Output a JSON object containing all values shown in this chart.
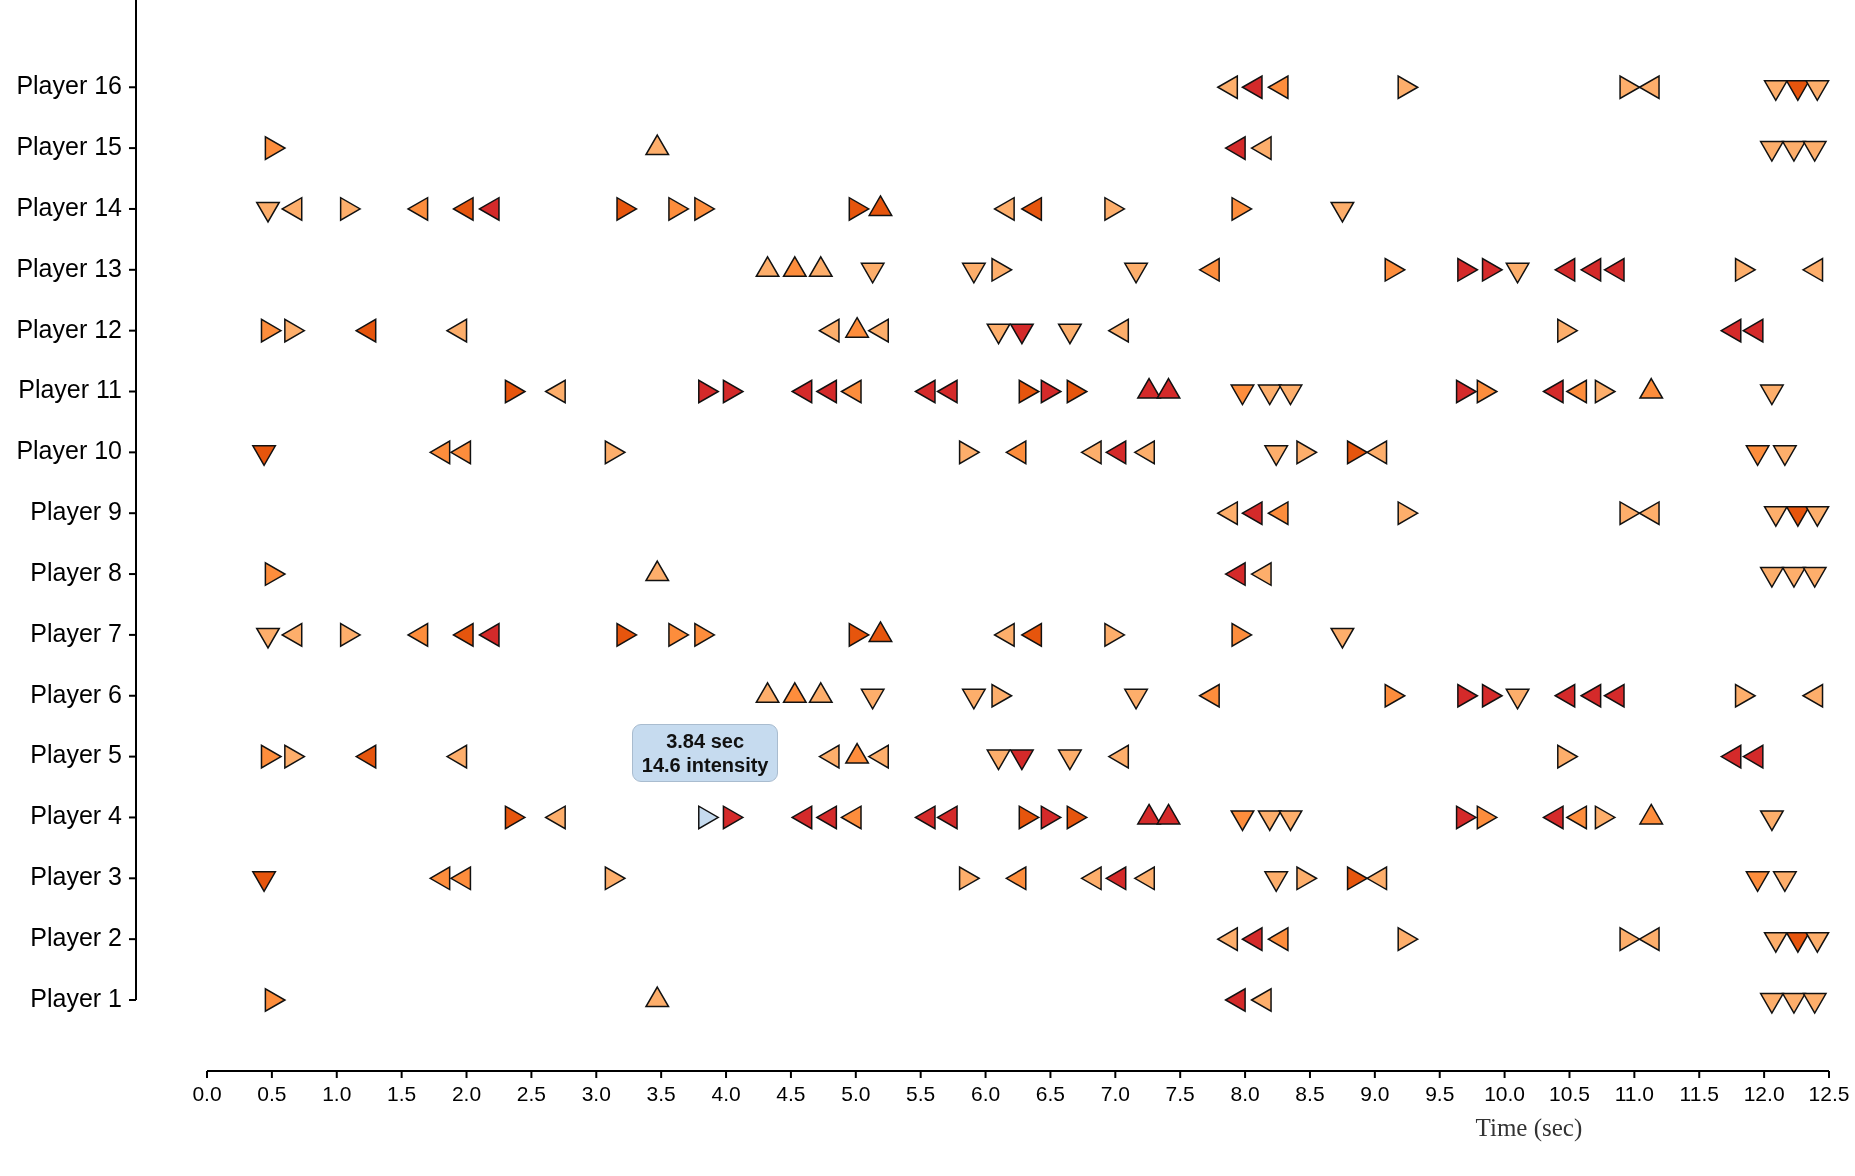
{
  "chart_data": {
    "type": "scatter",
    "orientation": "horizontal",
    "xlabel": "Time (sec)",
    "marker": "triangle",
    "categories": [
      "Player 16",
      "Player 15",
      "Player 14",
      "Player 13",
      "Player 12",
      "Player 11",
      "Player 10",
      "Player 9",
      "Player 8",
      "Player 7",
      "Player 6",
      "Player 5",
      "Player 4",
      "Player 3",
      "Player 2",
      "Player 1"
    ],
    "xlim": [
      0,
      12.5
    ],
    "xticks": [
      {
        "value": 0,
        "label": "0.0"
      },
      0.5,
      {
        "value": 1,
        "label": "1.0"
      },
      1.5,
      {
        "value": 2,
        "label": "2.0"
      },
      2.5,
      {
        "value": 3,
        "label": "3.0"
      },
      3.5,
      {
        "value": 4,
        "label": "4.0"
      },
      4.5,
      {
        "value": 5,
        "label": "5.0"
      },
      5.5,
      {
        "value": 6,
        "label": "6.0"
      },
      6.5,
      {
        "value": 7,
        "label": "7.0"
      },
      7.5,
      {
        "value": 8,
        "label": "8.0"
      },
      8.5,
      {
        "value": 9,
        "label": "9.0"
      },
      9.5,
      {
        "value": 10,
        "label": "10.0"
      },
      10.5,
      {
        "value": 11,
        "label": "11.0"
      },
      11.5,
      {
        "value": 12,
        "label": "12.0"
      },
      12.5
    ],
    "annotations": [
      {
        "text": "3.84 sec\n14.6 intensity",
        "x": 3.84,
        "y": "Player 4"
      }
    ],
    "series": [
      {
        "x": [
          "Player 1",
          "Player 2",
          "Player 2",
          "Player 3",
          "Player 3",
          "Player 3",
          "Player 3",
          "Player 4",
          "Player 4",
          "Player 4",
          "Player 4",
          "Player 4",
          "Player 4",
          "Player 4",
          "Player 4",
          "Player 4",
          "Player 5",
          "Player 5",
          "Player 5",
          "Player 6",
          "Player 6",
          "Player 6",
          "Player 6",
          "Player 6",
          "Player 7",
          "Player 7",
          "Player 7",
          "Player 7",
          "Player 7",
          "Player 7",
          "Player 7",
          "Player 8",
          "Player 9",
          "Player 9",
          "Player 10",
          "Player 10",
          "Player 10",
          "Player 10",
          "Player 11",
          "Player 11",
          "Player 11",
          "Player 11",
          "Player 11",
          "Player 11",
          "Player 11",
          "Player 11",
          "Player 11",
          "Player 12",
          "Player 12",
          "Player 12",
          "Player 13",
          "Player 13",
          "Player 13",
          "Player 13",
          "Player 13",
          "Player 14",
          "Player 14",
          "Player 14",
          "Player 14",
          "Player 14",
          "Player 14",
          "Player 14",
          "Player 15",
          "Player 16",
          "Player 16"
        ],
        "values": [
          0.5,
          9.23,
          10.94,
          3.12,
          5.85,
          8.45,
          8.84,
          2.35,
          3.84,
          4.03,
          6.31,
          6.48,
          6.68,
          9.68,
          9.84,
          10.75,
          0.47,
          0.65,
          10.46,
          6.1,
          9.13,
          9.69,
          9.88,
          11.83,
          1.08,
          3.21,
          3.61,
          3.81,
          5,
          6.97,
          7.95,
          0.5,
          9.23,
          10.94,
          3.12,
          5.85,
          8.45,
          8.84,
          2.35,
          3.84,
          4.03,
          6.31,
          6.48,
          6.68,
          9.68,
          9.84,
          10.75,
          0.47,
          0.65,
          10.46,
          6.1,
          9.13,
          9.69,
          9.88,
          11.83,
          1.08,
          3.21,
          3.61,
          3.81,
          5,
          6.97,
          7.95,
          0.5,
          9.23,
          10.94
        ],
        "colors": [
          "#fd8d3c",
          "#fdae6b",
          "#fdae6b",
          "#fdae6b",
          "#fdae6b",
          "#fdae6b",
          "#e6550d",
          "#e6550d",
          "#c6dbef",
          "#d42a2a",
          "#e6550d",
          "#d42a2a",
          "#e6550d",
          "#d42a2a",
          "#fd8d3c",
          "#fdae6b",
          "#fd8d3c",
          "#fdae6b",
          "#fdae6b",
          "#fdae6b",
          "#fd8d3c",
          "#d42a2a",
          "#d42a2a",
          "#fdae6b",
          "#fdae6b",
          "#e6550d",
          "#fd8d3c",
          "#fd8d3c",
          "#e6550d",
          "#fdae6b",
          "#fd8d3c",
          "#fd8d3c",
          "#fdae6b",
          "#fdae6b",
          "#fdae6b",
          "#fdae6b",
          "#fdae6b",
          "#e6550d",
          "#e6550d",
          "#d42a2a",
          "#d42a2a",
          "#e6550d",
          "#d42a2a",
          "#e6550d",
          "#d42a2a",
          "#fd8d3c",
          "#fdae6b",
          "#fd8d3c",
          "#fdae6b",
          "#fdae6b",
          "#fdae6b",
          "#fd8d3c",
          "#d42a2a",
          "#d42a2a",
          "#fdae6b",
          "#fdae6b",
          "#e6550d",
          "#fd8d3c",
          "#fd8d3c",
          "#e6550d",
          "#fdae6b",
          "#fd8d3c",
          "#fd8d3c",
          "#fdae6b",
          "#fdae6b"
        ]
      },
      {
        "x": [
          "Player 1",
          "Player 1",
          "Player 2",
          "Player 2",
          "Player 2",
          "Player 2",
          "Player 3",
          "Player 3",
          "Player 3",
          "Player 3",
          "Player 3",
          "Player 3",
          "Player 3",
          "Player 4",
          "Player 4",
          "Player 4",
          "Player 4",
          "Player 4",
          "Player 4",
          "Player 4",
          "Player 4",
          "Player 5",
          "Player 5",
          "Player 5",
          "Player 5",
          "Player 5",
          "Player 5",
          "Player 5",
          "Player 6",
          "Player 6",
          "Player 6",
          "Player 6",
          "Player 6",
          "Player 7",
          "Player 7",
          "Player 7",
          "Player 7",
          "Player 7",
          "Player 7",
          "Player 8",
          "Player 8",
          "Player 9",
          "Player 9",
          "Player 9",
          "Player 9",
          "Player 10",
          "Player 10",
          "Player 10",
          "Player 10",
          "Player 10",
          "Player 10",
          "Player 10",
          "Player 11",
          "Player 11",
          "Player 11",
          "Player 11",
          "Player 11",
          "Player 11",
          "Player 11",
          "Player 11",
          "Player 12",
          "Player 12",
          "Player 12",
          "Player 12",
          "Player 12",
          "Player 12",
          "Player 12",
          "Player 13",
          "Player 13",
          "Player 13",
          "Player 13",
          "Player 13",
          "Player 14",
          "Player 14",
          "Player 14",
          "Player 14",
          "Player 14",
          "Player 14",
          "Player 15",
          "Player 15",
          "Player 16",
          "Player 16",
          "Player 16",
          "Player 16"
        ],
        "values": [
          7.95,
          8.15,
          7.89,
          8.08,
          8.28,
          11.14,
          1.82,
          1.98,
          6.26,
          6.84,
          7.03,
          7.25,
          9.04,
          2.71,
          4.61,
          4.8,
          4.99,
          5.56,
          5.73,
          10.4,
          10.58,
          1.25,
          1.95,
          4.82,
          5.2,
          7.05,
          11.77,
          11.94,
          7.75,
          10.49,
          10.69,
          10.87,
          12.4,
          0.68,
          1.65,
          2,
          2.2,
          6.17,
          6.38,
          7.95,
          8.15,
          7.89,
          8.08,
          8.28,
          11.14,
          1.82,
          1.98,
          6.26,
          6.84,
          7.03,
          7.25,
          9.04,
          2.71,
          4.61,
          4.8,
          4.99,
          5.56,
          5.73,
          10.4,
          10.58,
          1.25,
          1.95,
          4.82,
          5.2,
          7.05,
          11.77,
          11.94,
          7.75,
          10.49,
          10.69,
          10.87,
          12.4,
          0.68,
          1.65,
          2,
          2.2,
          6.17,
          6.38,
          7.95,
          8.15,
          7.89,
          8.08,
          8.28,
          11.14
        ],
        "colors": [
          "#d42a2a",
          "#fdae6b",
          "#fdae6b",
          "#d42a2a",
          "#fd8d3c",
          "#fdae6b",
          "#fd8d3c",
          "#fd8d3c",
          "#fd8d3c",
          "#fdae6b",
          "#d42a2a",
          "#fdae6b",
          "#fdae6b",
          "#fdae6b",
          "#d42a2a",
          "#d42a2a",
          "#fd8d3c",
          "#d42a2a",
          "#d42a2a",
          "#d42a2a",
          "#fd8d3c",
          "#e6550d",
          "#fdae6b",
          "#fdae6b",
          "#fdae6b",
          "#fdae6b",
          "#d42a2a",
          "#d42a2a",
          "#fd8d3c",
          "#d42a2a",
          "#d42a2a",
          "#d42a2a",
          "#fdae6b",
          "#fdae6b",
          "#fd8d3c",
          "#e6550d",
          "#d42a2a",
          "#fdae6b",
          "#e6550d",
          "#d42a2a",
          "#fdae6b",
          "#fdae6b",
          "#d42a2a",
          "#fd8d3c",
          "#fdae6b",
          "#fd8d3c",
          "#fd8d3c",
          "#fd8d3c",
          "#fdae6b",
          "#d42a2a",
          "#fdae6b",
          "#fdae6b",
          "#fdae6b",
          "#d42a2a",
          "#d42a2a",
          "#fd8d3c",
          "#d42a2a",
          "#d42a2a",
          "#d42a2a",
          "#fd8d3c",
          "#e6550d",
          "#fdae6b",
          "#fdae6b",
          "#fdae6b",
          "#fdae6b",
          "#d42a2a",
          "#d42a2a",
          "#fd8d3c",
          "#d42a2a",
          "#d42a2a",
          "#d42a2a",
          "#fdae6b",
          "#fdae6b",
          "#fd8d3c",
          "#e6550d",
          "#d42a2a",
          "#fdae6b",
          "#e6550d",
          "#d42a2a",
          "#fdae6b",
          "#fdae6b",
          "#d42a2a",
          "#fd8d3c",
          "#fdae6b"
        ]
      },
      {
        "x": [
          "Player 1",
          "Player 4",
          "Player 4",
          "Player 4",
          "Player 5",
          "Player 6",
          "Player 6",
          "Player 6",
          "Player 7",
          "Player 8",
          "Player 11",
          "Player 11",
          "Player 11",
          "Player 12",
          "Player 13",
          "Player 13",
          "Player 13",
          "Player 14",
          "Player 15"
        ],
        "values": [
          3.47,
          7.26,
          7.41,
          11.13,
          5.01,
          4.32,
          4.53,
          4.73,
          5.19,
          3.47,
          7.26,
          7.41,
          11.13,
          5.01,
          4.32,
          4.53,
          4.73,
          5.19,
          3.47
        ],
        "colors": [
          "#fdae6b",
          "#d42a2a",
          "#d42a2a",
          "#fd8d3c",
          "#fd8d3c",
          "#fdae6b",
          "#fd8d3c",
          "#fdae6b",
          "#e6550d",
          "#fdae6b",
          "#d42a2a",
          "#d42a2a",
          "#fd8d3c",
          "#fd8d3c",
          "#fdae6b",
          "#fd8d3c",
          "#fdae6b",
          "#e6550d",
          "#fdae6b"
        ]
      },
      {
        "x": [
          "Player 1",
          "Player 1",
          "Player 1",
          "Player 2",
          "Player 2",
          "Player 2",
          "Player 3",
          "Player 3",
          "Player 3",
          "Player 3",
          "Player 4",
          "Player 4",
          "Player 4",
          "Player 4",
          "Player 5",
          "Player 5",
          "Player 5",
          "Player 6",
          "Player 6",
          "Player 6",
          "Player 6",
          "Player 7",
          "Player 7",
          "Player 8",
          "Player 8",
          "Player 8",
          "Player 9",
          "Player 9",
          "Player 9",
          "Player 10",
          "Player 10",
          "Player 10",
          "Player 10",
          "Player 11",
          "Player 11",
          "Player 11",
          "Player 11",
          "Player 12",
          "Player 12",
          "Player 12",
          "Player 13",
          "Player 13",
          "Player 13",
          "Player 13",
          "Player 14",
          "Player 14",
          "Player 15",
          "Player 15",
          "Player 15",
          "Player 16",
          "Player 16",
          "Player 16"
        ],
        "values": [
          12.06,
          12.23,
          12.39,
          12.09,
          12.26,
          12.41,
          0.44,
          8.24,
          11.95,
          12.16,
          7.98,
          8.19,
          8.35,
          12.06,
          6.1,
          6.28,
          6.65,
          5.13,
          5.91,
          7.16,
          10.1,
          0.47,
          8.75,
          12.06,
          12.23,
          12.39,
          12.09,
          12.26,
          12.41,
          0.44,
          8.24,
          11.95,
          12.16,
          7.98,
          8.19,
          8.35,
          12.06,
          6.1,
          6.28,
          6.65,
          5.13,
          5.91,
          7.16,
          10.1,
          0.47,
          8.75,
          12.06,
          12.23,
          12.39,
          12.09,
          12.26,
          12.41
        ],
        "colors": [
          "#fdae6b",
          "#fdae6b",
          "#fdae6b",
          "#fdae6b",
          "#e6550d",
          "#fdae6b",
          "#e6550d",
          "#fdae6b",
          "#fd8d3c",
          "#fdae6b",
          "#fd8d3c",
          "#fdae6b",
          "#fdae6b",
          "#fdae6b",
          "#fdae6b",
          "#d42a2a",
          "#fdae6b",
          "#fdae6b",
          "#fdae6b",
          "#fdae6b",
          "#fdae6b",
          "#fdae6b",
          "#fdae6b",
          "#fdae6b",
          "#fdae6b",
          "#fdae6b",
          "#fdae6b",
          "#e6550d",
          "#fdae6b",
          "#e6550d",
          "#fdae6b",
          "#fd8d3c",
          "#fdae6b",
          "#fd8d3c",
          "#fdae6b",
          "#fdae6b",
          "#fdae6b",
          "#fdae6b",
          "#d42a2a",
          "#fdae6b",
          "#fdae6b",
          "#fdae6b",
          "#fdae6b",
          "#fdae6b",
          "#fdae6b",
          "#fdae6b",
          "#fdae6b",
          "#fdae6b",
          "#fdae6b",
          "#fdae6b",
          "#e6550d",
          "#fdae6b"
        ]
      }
    ]
  }
}
